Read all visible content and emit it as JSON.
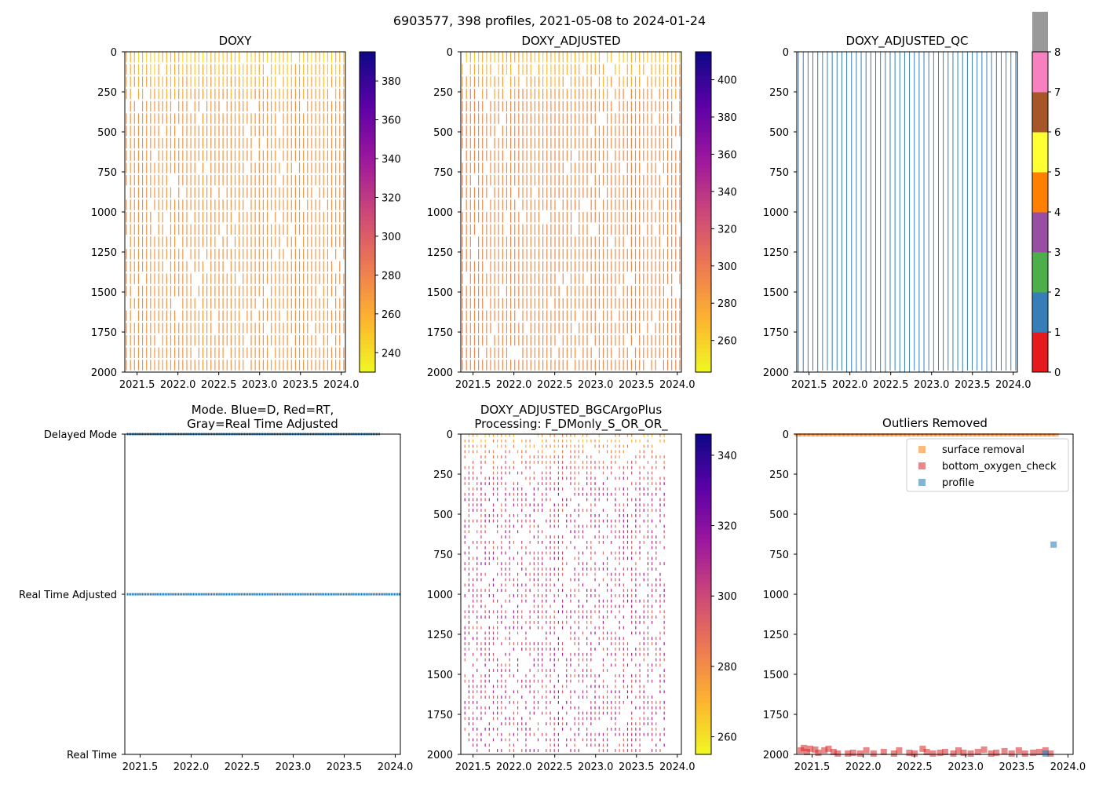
{
  "figure_title": "6903577, 398 profiles, 2021-05-08 to 2024-01-24",
  "chart_data": [
    {
      "id": "doxy",
      "type": "heatmap",
      "title": [
        "DOXY"
      ],
      "x": {
        "min": 2021.35,
        "max": 2024.05,
        "ticks": [
          2021.5,
          2022.0,
          2022.5,
          2023.0,
          2023.5,
          2024.0
        ],
        "tick_labels": [
          "2021.5",
          "2022.0",
          "2022.5",
          "2023.0",
          "2023.5",
          "2024.0"
        ]
      },
      "y": {
        "min": 0,
        "max": 2000,
        "inverted": true,
        "ticks": [
          0,
          250,
          500,
          750,
          1000,
          1250,
          1500,
          1750,
          2000
        ],
        "tick_labels": [
          "0",
          "250",
          "500",
          "750",
          "1000",
          "1250",
          "1500",
          "1750",
          "2000"
        ]
      },
      "profiles": {
        "start": 2021.37,
        "end": 2024.03,
        "count": 55,
        "deep_value": 272,
        "surface_value": 250,
        "sparse": false
      },
      "colorbar": {
        "colormap": "plasma_r",
        "min": 230,
        "max": 395,
        "ticks": [
          240,
          260,
          280,
          300,
          320,
          340,
          360,
          380
        ],
        "tick_labels": [
          "240",
          "260",
          "280",
          "300",
          "320",
          "340",
          "360",
          "380"
        ]
      }
    },
    {
      "id": "doxy_adjusted",
      "type": "heatmap",
      "title": [
        "DOXY_ADJUSTED"
      ],
      "x": {
        "min": 2021.35,
        "max": 2024.05,
        "ticks": [
          2021.5,
          2022.0,
          2022.5,
          2023.0,
          2023.5,
          2024.0
        ],
        "tick_labels": [
          "2021.5",
          "2022.0",
          "2022.5",
          "2023.0",
          "2023.5",
          "2024.0"
        ]
      },
      "y": {
        "min": 0,
        "max": 2000,
        "inverted": true,
        "ticks": [
          0,
          250,
          500,
          750,
          1000,
          1250,
          1500,
          1750,
          2000
        ],
        "tick_labels": [
          "0",
          "250",
          "500",
          "750",
          "1000",
          "1250",
          "1500",
          "1750",
          "2000"
        ]
      },
      "profiles": {
        "start": 2021.37,
        "end": 2024.03,
        "count": 55,
        "deep_value": 292,
        "surface_value": 268,
        "sparse": false
      },
      "colorbar": {
        "colormap": "plasma_r",
        "min": 243,
        "max": 415,
        "ticks": [
          260,
          280,
          300,
          320,
          340,
          360,
          380,
          400
        ],
        "tick_labels": [
          "260",
          "280",
          "300",
          "320",
          "340",
          "360",
          "380",
          "400"
        ]
      }
    },
    {
      "id": "doxy_adjusted_qc",
      "type": "heatmap",
      "title": [
        "DOXY_ADJUSTED_QC"
      ],
      "x": {
        "min": 2021.35,
        "max": 2024.05,
        "ticks": [
          2021.5,
          2022.0,
          2022.5,
          2023.0,
          2023.5,
          2024.0
        ],
        "tick_labels": [
          "2021.5",
          "2022.0",
          "2022.5",
          "2023.0",
          "2023.5",
          "2024.0"
        ]
      },
      "y": {
        "min": 0,
        "max": 2000,
        "inverted": true,
        "ticks": [
          0,
          250,
          500,
          750,
          1000,
          1250,
          1500,
          1750,
          2000
        ],
        "tick_labels": [
          "0",
          "250",
          "500",
          "750",
          "1000",
          "1250",
          "1500",
          "1750",
          "2000"
        ]
      },
      "profiles": {
        "start": 2021.37,
        "end": 2024.03,
        "count": 46,
        "qc_value": 1
      },
      "colorbar": {
        "colormap": "Set1",
        "min": 0,
        "max": 8,
        "categories": [
          0,
          1,
          2,
          3,
          4,
          5,
          6,
          7
        ],
        "colors": [
          "#e41a1c",
          "#377eb8",
          "#4daf4a",
          "#984ea3",
          "#ff7f00",
          "#ffff33",
          "#a65628",
          "#f781bf",
          "#999999"
        ],
        "ticks": [
          0,
          1,
          2,
          3,
          4,
          5,
          6,
          7,
          8
        ],
        "tick_labels": [
          "0",
          "1",
          "2",
          "3",
          "4",
          "5",
          "6",
          "7",
          "8"
        ]
      }
    },
    {
      "id": "mode",
      "type": "scatter",
      "title": [
        "Mode. Blue=D, Red=RT,",
        "Gray=Real Time Adjusted"
      ],
      "x": {
        "min": 2021.35,
        "max": 2024.05,
        "ticks": [
          2021.5,
          2022.0,
          2022.5,
          2023.0,
          2023.5,
          2024.0
        ],
        "tick_labels": [
          "2021.5",
          "2022.0",
          "2022.5",
          "2023.0",
          "2023.5",
          "2024.0"
        ]
      },
      "y": {
        "categories": [
          "Real Time",
          "Real Time Adjusted",
          "Delayed Mode"
        ],
        "min": 0,
        "max": 2
      },
      "series": [
        {
          "name": "Delayed Mode",
          "y": 2,
          "x_start": 2021.37,
          "x_end": 2023.85,
          "color": "#1f77b4"
        },
        {
          "name": "Real Time Adjusted",
          "y": 1,
          "x_start": 2021.37,
          "x_end": 2024.05,
          "color": "#1f77b4"
        }
      ]
    },
    {
      "id": "bgcargoplus",
      "type": "heatmap",
      "title": [
        "DOXY_ADJUSTED_BGCArgoPlus",
        "Processing: F_DMonly_S_OR_OR_"
      ],
      "x": {
        "min": 2021.35,
        "max": 2024.05,
        "ticks": [
          2021.5,
          2022.0,
          2022.5,
          2023.0,
          2023.5,
          2024.0
        ],
        "tick_labels": [
          "2021.5",
          "2022.0",
          "2022.5",
          "2023.0",
          "2023.5",
          "2024.0"
        ]
      },
      "y": {
        "min": 0,
        "max": 2000,
        "inverted": true,
        "ticks": [
          0,
          250,
          500,
          750,
          1000,
          1250,
          1500,
          1750,
          2000
        ],
        "tick_labels": [
          "0",
          "250",
          "500",
          "750",
          "1000",
          "1250",
          "1500",
          "1750",
          "2000"
        ]
      },
      "profiles": {
        "start": 2021.4,
        "end": 2023.84,
        "count": 50,
        "deep_value": 302,
        "surface_value": 272,
        "sparse": true
      },
      "colorbar": {
        "colormap": "plasma_r",
        "min": 255,
        "max": 346,
        "ticks": [
          260,
          280,
          300,
          320,
          340
        ],
        "tick_labels": [
          "260",
          "280",
          "300",
          "320",
          "340"
        ]
      }
    },
    {
      "id": "outliers",
      "type": "scatter",
      "title": [
        "Outliers Removed"
      ],
      "x": {
        "min": 2021.35,
        "max": 2024.05,
        "ticks": [
          2021.5,
          2022.0,
          2022.5,
          2023.0,
          2023.5,
          2024.0
        ],
        "tick_labels": [
          "2021.5",
          "2022.0",
          "2022.5",
          "2023.0",
          "2023.5",
          "2024.0"
        ]
      },
      "y": {
        "min": 0,
        "max": 2000,
        "inverted": true,
        "ticks": [
          0,
          250,
          500,
          750,
          1000,
          1250,
          1500,
          1750,
          2000
        ],
        "tick_labels": [
          "0",
          "250",
          "500",
          "750",
          "1000",
          "1250",
          "1500",
          "1750",
          "2000"
        ]
      },
      "legend": {
        "placement": "top-right",
        "entries": [
          {
            "label": "surface removal",
            "color": "#ff7f0e"
          },
          {
            "label": "bottom_oxygen_check",
            "color": "#d62728"
          },
          {
            "label": "profile",
            "color": "#1f77b4"
          }
        ]
      },
      "series": [
        {
          "name": "surface removal",
          "color": "#ff7f0e",
          "x_start": 2021.36,
          "x_end": 2023.88,
          "depth_min": 0,
          "depth_max": 10
        },
        {
          "name": "bottom_oxygen_check",
          "color": "#d62728",
          "points": [
            [
              2021.39,
              1975
            ],
            [
              2021.42,
              1960
            ],
            [
              2021.45,
              1985
            ],
            [
              2021.48,
              1965
            ],
            [
              2021.53,
              1970
            ],
            [
              2021.56,
              1990
            ],
            [
              2021.62,
              1975
            ],
            [
              2021.66,
              1965
            ],
            [
              2021.71,
              1985
            ],
            [
              2021.75,
              1995
            ],
            [
              2021.85,
              1995
            ],
            [
              2021.9,
              1990
            ],
            [
              2021.97,
              1995
            ],
            [
              2022.03,
              1975
            ],
            [
              2022.1,
              1995
            ],
            [
              2022.2,
              1985
            ],
            [
              2022.3,
              1995
            ],
            [
              2022.35,
              1975
            ],
            [
              2022.45,
              1990
            ],
            [
              2022.5,
              1995
            ],
            [
              2022.58,
              1965
            ],
            [
              2022.62,
              1985
            ],
            [
              2022.68,
              1995
            ],
            [
              2022.75,
              1990
            ],
            [
              2022.8,
              1985
            ],
            [
              2022.88,
              1995
            ],
            [
              2022.93,
              1975
            ],
            [
              2022.98,
              1990
            ],
            [
              2023.05,
              1995
            ],
            [
              2023.12,
              1985
            ],
            [
              2023.18,
              1970
            ],
            [
              2023.25,
              1995
            ],
            [
              2023.3,
              1990
            ],
            [
              2023.38,
              1980
            ],
            [
              2023.45,
              1995
            ],
            [
              2023.52,
              1975
            ],
            [
              2023.58,
              1995
            ],
            [
              2023.66,
              1990
            ],
            [
              2023.72,
              1985
            ],
            [
              2023.78,
              1975
            ],
            [
              2023.83,
              1995
            ]
          ]
        },
        {
          "name": "profile",
          "color": "#1f77b4",
          "points": [
            [
              2023.86,
              690
            ],
            [
              2023.78,
              1995
            ]
          ]
        }
      ]
    }
  ]
}
